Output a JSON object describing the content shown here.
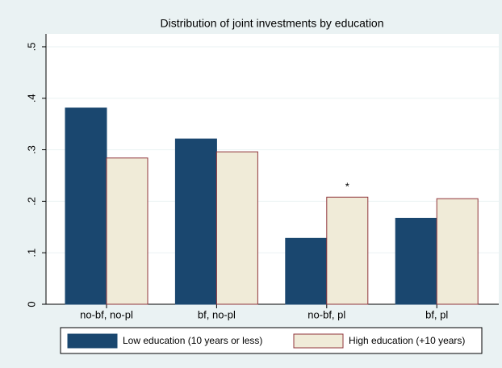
{
  "chart_data": {
    "type": "bar",
    "title": "Distribution of joint investments by education",
    "categories": [
      "no-bf, no-pl",
      "bf, no-pl",
      "no-bf, pl",
      "bf, pl"
    ],
    "series": [
      {
        "name": "Low education (10 years or less)",
        "color": "#1a476f",
        "values": [
          0.381,
          0.321,
          0.128,
          0.167
        ]
      },
      {
        "name": "High education (+10 years)",
        "color": "#f0ebd8",
        "values": [
          0.284,
          0.296,
          0.208,
          0.205
        ]
      }
    ],
    "annotation": "*",
    "ylim": [
      0,
      0.525
    ],
    "yticks": [
      0,
      {
        "value": 0.1,
        "label": ".1"
      },
      {
        "value": 0.2,
        "label": ".2"
      },
      {
        "value": 0.3,
        "label": ".3"
      },
      {
        "value": 0.4,
        "label": ".4"
      },
      {
        "value": 0.5,
        "label": ".5"
      }
    ],
    "grid": true,
    "legend": "bottom"
  }
}
